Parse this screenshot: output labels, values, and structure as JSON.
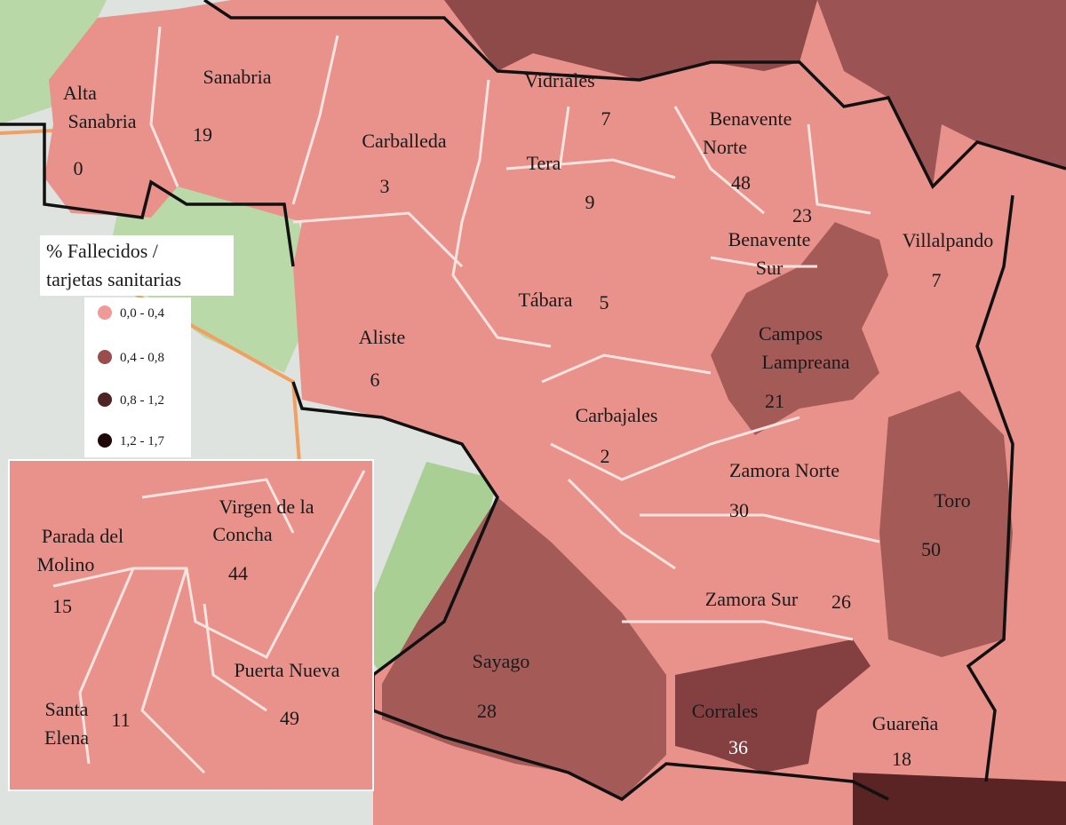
{
  "legend": {
    "title": [
      "% Fallecidos /",
      "tarjetas sanitarias"
    ],
    "items": [
      {
        "label": "0,0 - 0,4",
        "color": "#ef9a97"
      },
      {
        "label": "0,4 - 0,8",
        "color": "#9b4d4c"
      },
      {
        "label": "0,8 - 1,2",
        "color": "#4e2424"
      },
      {
        "label": "1,2 - 1,7",
        "color": "#1e0808"
      }
    ]
  },
  "regions": [
    {
      "name": [
        "Alta",
        "Sanabria"
      ],
      "value": 0
    },
    {
      "name": [
        "Sanabria"
      ],
      "value": 19
    },
    {
      "name": [
        "Carballeda"
      ],
      "value": 3
    },
    {
      "name": [
        "Vidriales"
      ],
      "value": 7
    },
    {
      "name": [
        "Tera"
      ],
      "value": 9
    },
    {
      "name": [
        "Benavente",
        "Norte"
      ],
      "value": 48
    },
    {
      "name": [
        "Benavente",
        "Sur"
      ],
      "value": 23
    },
    {
      "name": [
        "Villalpando"
      ],
      "value": 7
    },
    {
      "name": [
        "Tábara"
      ],
      "value": 5
    },
    {
      "name": [
        "Aliste"
      ],
      "value": 6
    },
    {
      "name": [
        "Campos",
        "Lampreana"
      ],
      "value": 21
    },
    {
      "name": [
        "Carbajales"
      ],
      "value": 2
    },
    {
      "name": [
        "Zamora Norte"
      ],
      "value": 30
    },
    {
      "name": [
        "Toro"
      ],
      "value": 50
    },
    {
      "name": [
        "Zamora Sur"
      ],
      "value": 26
    },
    {
      "name": [
        "Sayago"
      ],
      "value": 28
    },
    {
      "name": [
        "Corrales"
      ],
      "value": 36
    },
    {
      "name": [
        "Guareña"
      ],
      "value": 18
    }
  ],
  "inset_regions": [
    {
      "name": [
        "Parada del",
        "Molino"
      ],
      "value": 15
    },
    {
      "name": [
        "Virgen de la",
        "Concha"
      ],
      "value": 44
    },
    {
      "name": [
        "Puerta Nueva"
      ],
      "value": 49
    },
    {
      "name": [
        "Santa",
        "Elena"
      ],
      "value": 11
    }
  ]
}
